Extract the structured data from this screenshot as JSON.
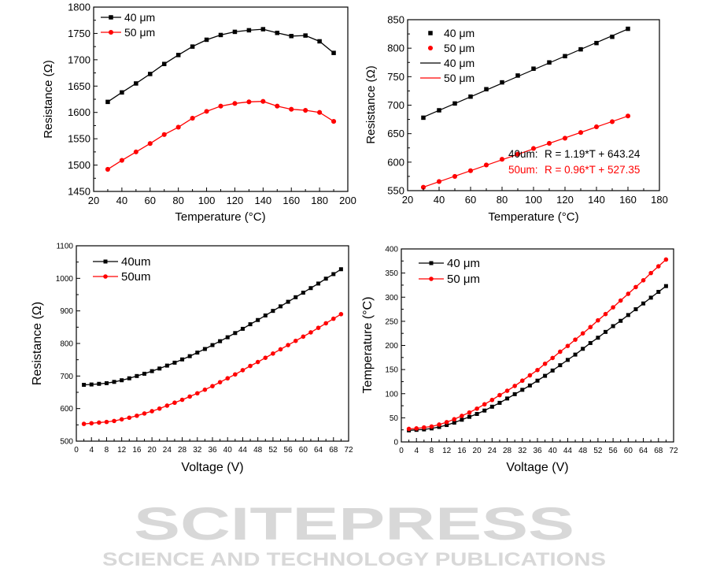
{
  "watermark": {
    "line1": "SCITEPRESS",
    "line2": "SCIENCE AND TECHNOLOGY PUBLICATIONS"
  },
  "colors": {
    "series_40": "#000000",
    "series_50": "#ff0000",
    "watermark": "#d8d8d8"
  },
  "chart_data": [
    {
      "id": "resistance-vs-temperature-ramp",
      "type": "line",
      "title": "",
      "xlabel": "Temperature (°C)",
      "ylabel": "Resistance (Ω)",
      "xlim": [
        20,
        200
      ],
      "ylim": [
        1450,
        1800
      ],
      "xticks": [
        20,
        40,
        60,
        80,
        100,
        120,
        140,
        160,
        180,
        200
      ],
      "yticks": [
        1450,
        1500,
        1550,
        1600,
        1650,
        1700,
        1750,
        1800
      ],
      "grid": false,
      "legend_position": "top-left",
      "x": [
        30,
        40,
        50,
        60,
        70,
        80,
        90,
        100,
        110,
        120,
        130,
        140,
        150,
        160,
        170,
        180,
        190
      ],
      "series": [
        {
          "name": "40 μm",
          "color": "#000000",
          "marker": "square",
          "values": [
            1620,
            1638,
            1655,
            1673,
            1692,
            1709,
            1725,
            1738,
            1747,
            1753,
            1756,
            1758,
            1751,
            1745,
            1746,
            1735,
            1713
          ]
        },
        {
          "name": "50 μm",
          "color": "#ff0000",
          "marker": "circle",
          "values": [
            1492,
            1509,
            1525,
            1541,
            1558,
            1572,
            1589,
            1602,
            1612,
            1617,
            1620,
            1621,
            1612,
            1606,
            1604,
            1600,
            1583
          ]
        }
      ]
    },
    {
      "id": "resistance-vs-temperature-linear",
      "type": "scatter",
      "title": "",
      "xlabel": "Temperature (°C)",
      "ylabel": "Resistance (Ω)",
      "xlim": [
        20,
        180
      ],
      "ylim": [
        550,
        850
      ],
      "xticks": [
        20,
        40,
        60,
        80,
        100,
        120,
        140,
        160,
        180
      ],
      "yticks": [
        550,
        600,
        650,
        700,
        750,
        800,
        850
      ],
      "grid": false,
      "legend_position": "top-left",
      "x": [
        30,
        40,
        50,
        60,
        70,
        80,
        90,
        100,
        110,
        120,
        130,
        140,
        150,
        160
      ],
      "series": [
        {
          "name": "40 μm",
          "color": "#000000",
          "marker": "square",
          "values": [
            678,
            691,
            703,
            715,
            728,
            740,
            752,
            764,
            775,
            786,
            798,
            809,
            820,
            834
          ]
        },
        {
          "name": "50 μm",
          "color": "#ff0000",
          "marker": "circle",
          "values": [
            556,
            566,
            575,
            585,
            595,
            605,
            614,
            624,
            633,
            642,
            652,
            662,
            671,
            681
          ]
        }
      ],
      "fits": [
        {
          "name": "40 μm",
          "color": "#000000",
          "slope": 1.19,
          "intercept": 643.24,
          "label_prefix": "40um:",
          "label_eq": "R = 1.19*T + 643.24"
        },
        {
          "name": "50 μm",
          "color": "#ff0000",
          "slope": 0.96,
          "intercept": 527.35,
          "label_prefix": "50um:",
          "label_eq": "R = 0.96*T + 527.35"
        }
      ]
    },
    {
      "id": "resistance-vs-voltage",
      "type": "line",
      "title": "",
      "xlabel": "Voltage (V)",
      "ylabel": "Resistance (Ω)",
      "xlim": [
        0,
        72
      ],
      "ylim": [
        500,
        1100
      ],
      "xticks": [
        0,
        4,
        8,
        12,
        16,
        20,
        24,
        28,
        32,
        36,
        40,
        44,
        48,
        52,
        56,
        60,
        64,
        68,
        72
      ],
      "yticks": [
        500,
        600,
        700,
        800,
        900,
        1000,
        1100
      ],
      "grid": false,
      "legend_position": "top-left",
      "x": [
        2,
        4,
        6,
        8,
        10,
        12,
        14,
        16,
        18,
        20,
        22,
        24,
        26,
        28,
        30,
        32,
        34,
        36,
        38,
        40,
        42,
        44,
        46,
        48,
        50,
        52,
        54,
        56,
        58,
        60,
        62,
        64,
        66,
        68,
        70
      ],
      "series": [
        {
          "name": "40um",
          "color": "#000000",
          "marker": "square",
          "values": [
            673,
            674,
            676,
            678,
            682,
            687,
            693,
            700,
            707,
            715,
            723,
            732,
            741,
            751,
            761,
            772,
            783,
            795,
            807,
            819,
            832,
            845,
            859,
            872,
            886,
            900,
            914,
            928,
            942,
            956,
            970,
            984,
            999,
            1013,
            1028
          ]
        },
        {
          "name": "50um",
          "color": "#ff0000",
          "marker": "circle",
          "values": [
            553,
            555,
            557,
            559,
            562,
            567,
            572,
            578,
            585,
            592,
            600,
            609,
            618,
            627,
            637,
            647,
            658,
            669,
            681,
            693,
            705,
            718,
            731,
            743,
            756,
            769,
            782,
            795,
            808,
            821,
            834,
            848,
            862,
            876,
            890
          ]
        }
      ]
    },
    {
      "id": "temperature-vs-voltage",
      "type": "line",
      "title": "",
      "xlabel": "Voltage (V)",
      "ylabel": "Temperature (°C)",
      "xlim": [
        0,
        72
      ],
      "ylim": [
        0,
        400
      ],
      "xticks": [
        0,
        4,
        8,
        12,
        16,
        20,
        24,
        28,
        32,
        36,
        40,
        44,
        48,
        52,
        56,
        60,
        64,
        68,
        72
      ],
      "yticks": [
        0,
        50,
        100,
        150,
        200,
        250,
        300,
        350,
        400
      ],
      "grid": false,
      "legend_position": "top-left",
      "x": [
        2,
        4,
        6,
        8,
        10,
        12,
        14,
        16,
        18,
        20,
        22,
        24,
        26,
        28,
        30,
        32,
        34,
        36,
        38,
        40,
        42,
        44,
        46,
        48,
        50,
        52,
        54,
        56,
        58,
        60,
        62,
        64,
        66,
        68,
        70
      ],
      "series": [
        {
          "name": "40 μm",
          "color": "#000000",
          "marker": "square",
          "values": [
            24,
            25,
            26,
            28,
            31,
            35,
            40,
            46,
            52,
            58,
            65,
            73,
            81,
            90,
            99,
            108,
            117,
            127,
            137,
            148,
            159,
            170,
            181,
            193,
            205,
            216,
            228,
            240,
            251,
            263,
            275,
            287,
            299,
            311,
            323
          ]
        },
        {
          "name": "50 μm",
          "color": "#ff0000",
          "marker": "circle",
          "values": [
            27,
            28,
            30,
            32,
            36,
            41,
            47,
            54,
            61,
            69,
            78,
            87,
            97,
            106,
            116,
            127,
            138,
            149,
            162,
            174,
            187,
            199,
            212,
            225,
            238,
            252,
            265,
            279,
            293,
            307,
            321,
            335,
            350,
            364,
            378
          ]
        }
      ]
    }
  ]
}
